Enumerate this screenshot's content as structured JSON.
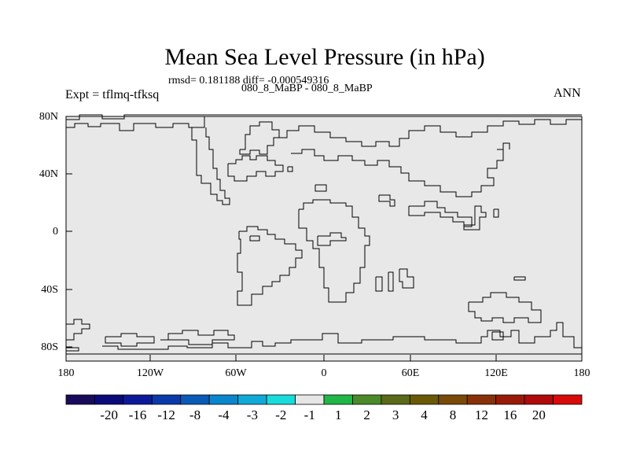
{
  "title": "Mean Sea Level Pressure (in hPa)",
  "stats": "rmsd= 0.181188 diff= -0.000549316",
  "subtitle": "080_8_MaBP - 080_8_MaBP",
  "expt_label": "Expt = tflmq-tfksq",
  "season": "ANN",
  "map": {
    "fill_color": "#e8e8e8",
    "coastline_color": "#000000",
    "y_ticks": [
      "80N",
      "40N",
      "0",
      "40S",
      "80S"
    ],
    "x_ticks": [
      "180",
      "120W",
      "60W",
      "0",
      "60E",
      "120E",
      "180"
    ]
  },
  "colorbar": {
    "colors": [
      "#1a0a5c",
      "#0a0a78",
      "#0c1a9a",
      "#0a3aaa",
      "#0a5ab8",
      "#0a86cc",
      "#10aad8",
      "#18dcdc",
      "#e6e6e6",
      "#20b648",
      "#4a8a2a",
      "#5a6a18",
      "#6a5a08",
      "#7a4a08",
      "#8a3008",
      "#9a1a08",
      "#b00a0a",
      "#d80a0a"
    ],
    "labels": [
      "-20",
      "-16",
      "-12",
      "-8",
      "-4",
      "-3",
      "-2",
      "-1",
      "1",
      "2",
      "3",
      "4",
      "8",
      "12",
      "16",
      "20"
    ]
  }
}
